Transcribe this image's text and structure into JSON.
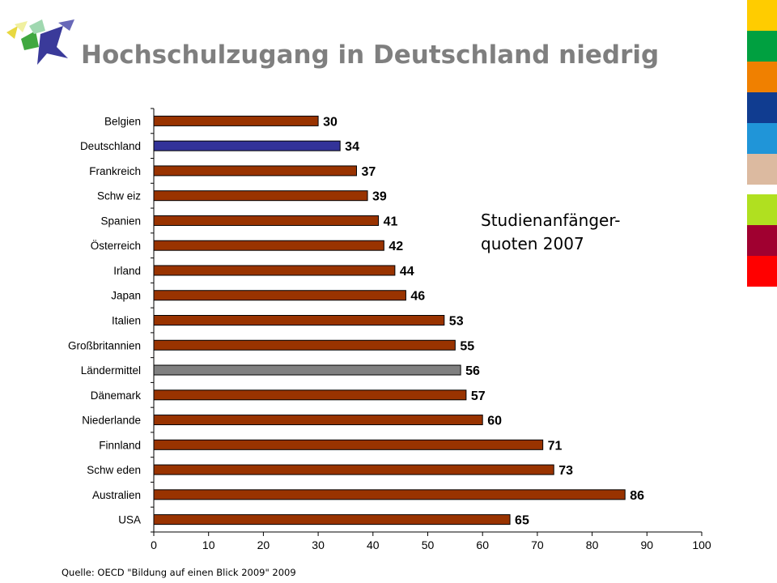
{
  "slide": {
    "title": "Hochschulzugang in Deutschland niedrig",
    "note_line1": "Studienanfänger-",
    "note_line2": "quoten 2007",
    "source": "Quelle: OECD \"Bildung auf einen Blick 2009\" 2009"
  },
  "colors": {
    "default_bar": "#993300",
    "highlight_bar": "#333399",
    "average_bar": "#808080",
    "stripes": [
      "#ffcc00",
      "#00a040",
      "#f08000",
      "#103c90",
      "#2095d8",
      "#dcbaa0",
      "#b0e020",
      "#a00030",
      "#ff0000"
    ]
  },
  "chart_data": {
    "type": "bar",
    "orientation": "horizontal",
    "title": "",
    "xlabel": "",
    "ylabel": "",
    "xlim": [
      0,
      100
    ],
    "ticks": [
      0,
      10,
      20,
      30,
      40,
      50,
      60,
      70,
      80,
      90,
      100
    ],
    "categories": [
      "Belgien",
      "Deutschland",
      "Frankreich",
      "Schw eiz",
      "Spanien",
      "Österreich",
      "Irland",
      "Japan",
      "Italien",
      "Großbritannien",
      "Ländermittel",
      "Dänemark",
      "Niederlande",
      "Finnland",
      "Schw eden",
      "Australien",
      "USA"
    ],
    "values": [
      30,
      34,
      37,
      39,
      41,
      42,
      44,
      46,
      53,
      55,
      56,
      57,
      60,
      71,
      73,
      86,
      65
    ],
    "highlight": "Deutschland",
    "average": "Ländermittel",
    "grid": false,
    "legend": "none"
  }
}
